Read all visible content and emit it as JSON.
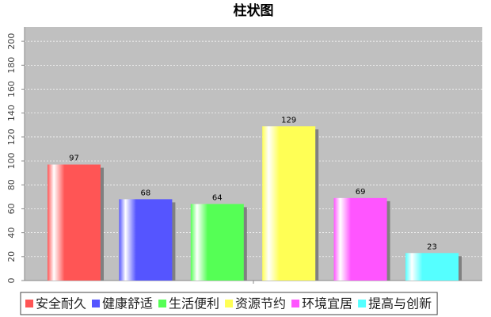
{
  "chart_data": {
    "type": "bar",
    "title": "柱状图",
    "categories": [
      null
    ],
    "series": [
      {
        "name": "安全耐久",
        "color": "#ff5555",
        "values": [
          97
        ]
      },
      {
        "name": "健康舒适",
        "color": "#5555ff",
        "values": [
          68
        ]
      },
      {
        "name": "生活便利",
        "color": "#55ff55",
        "values": [
          64
        ]
      },
      {
        "name": "资源节约",
        "color": "#ffff55",
        "values": [
          129
        ]
      },
      {
        "name": "环境宜居",
        "color": "#ff55ff",
        "values": [
          69
        ]
      },
      {
        "name": "提高与创新",
        "color": "#55ffff",
        "values": [
          23
        ]
      }
    ],
    "ylim": [
      0,
      212
    ],
    "yticks": [
      0,
      20,
      40,
      60,
      80,
      100,
      120,
      140,
      160,
      180,
      200
    ],
    "grid": true,
    "legend": "bottom"
  }
}
